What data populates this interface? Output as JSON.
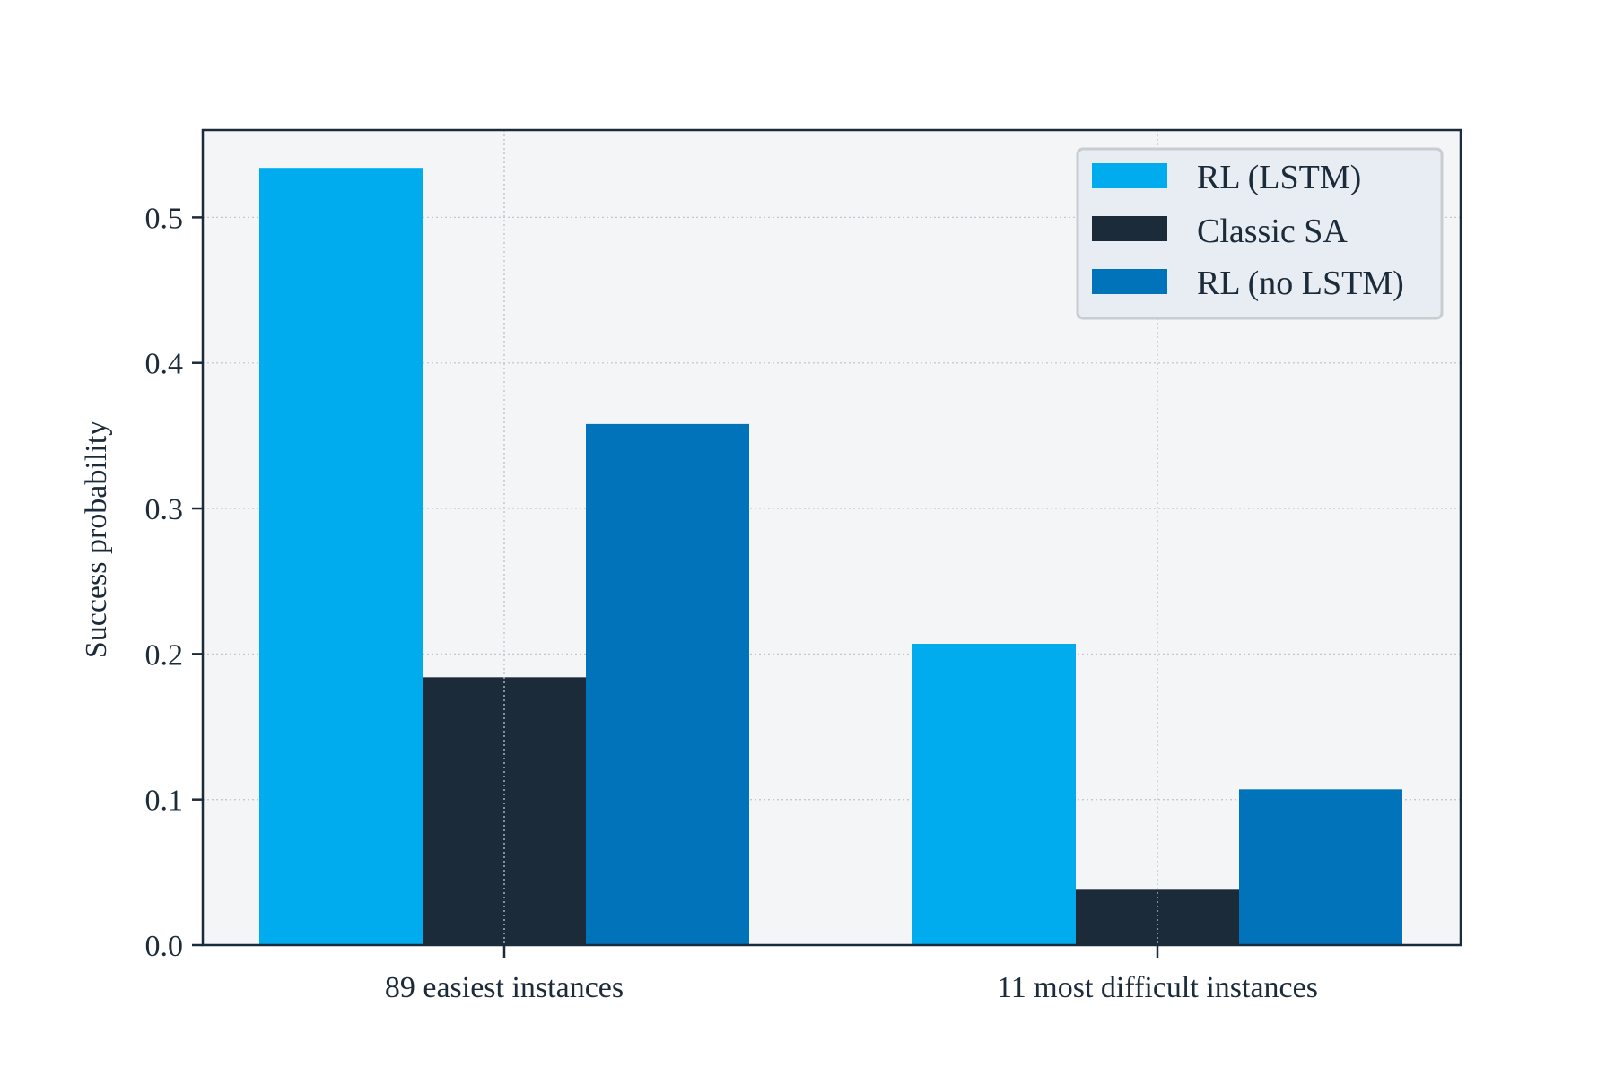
{
  "chart_data": {
    "type": "bar",
    "categories": [
      "89 easiest instances",
      "11 most difficult instances"
    ],
    "series": [
      {
        "name": "RL (LSTM)",
        "values": [
          0.534,
          0.207
        ],
        "color": "#00aced"
      },
      {
        "name": "Classic SA",
        "values": [
          0.184,
          0.038
        ],
        "color": "#1c2b39"
      },
      {
        "name": "RL (no LSTM)",
        "values": [
          0.358,
          0.107
        ],
        "color": "#0073bb"
      }
    ],
    "title": "",
    "xlabel": "",
    "ylabel": "Success probability",
    "ylim": [
      0,
      0.56
    ],
    "yticks": [
      0.0,
      0.1,
      0.2,
      0.3,
      0.4,
      0.5
    ],
    "ytick_labels": [
      "0.0",
      "0.1",
      "0.2",
      "0.3",
      "0.4",
      "0.5"
    ],
    "grid": true,
    "legend_position": "top-right",
    "plot_background": "#f3f5f7",
    "legend_background": "#e7edf3",
    "axis_color": "#1c2b39",
    "grid_color": "#c4c8cc"
  }
}
